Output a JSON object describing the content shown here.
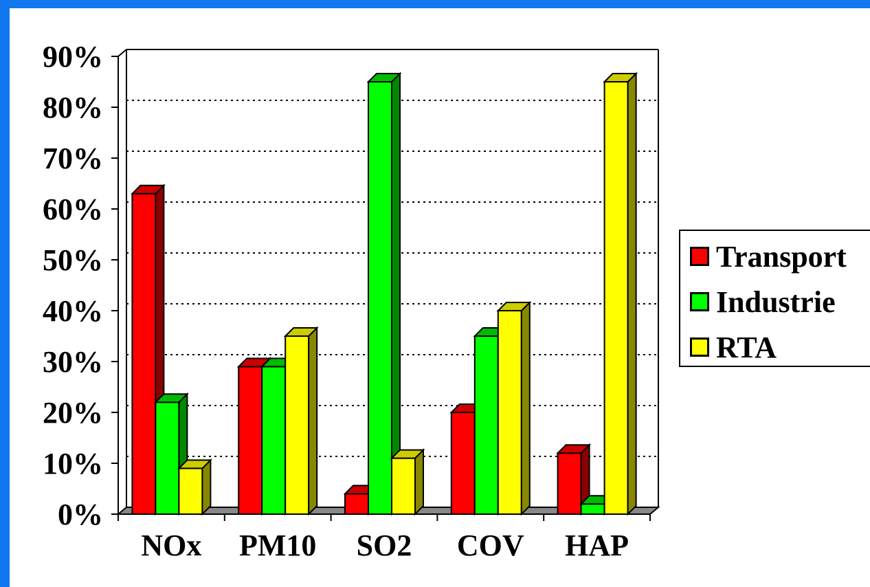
{
  "chart_data": {
    "type": "bar",
    "categories": [
      "NOx",
      "PM10",
      "SO2",
      "COV",
      "HAP"
    ],
    "series": [
      {
        "name": "Transport",
        "color": "#ff0000",
        "values": [
          63,
          29,
          4,
          20,
          12
        ]
      },
      {
        "name": "Industrie",
        "color": "#00ff00",
        "values": [
          22,
          29,
          85,
          35,
          2
        ]
      },
      {
        "name": "RTA",
        "color": "#ffff00",
        "values": [
          9,
          35,
          11,
          40,
          85
        ]
      }
    ],
    "yticks": [
      "0%",
      "10%",
      "20%",
      "30%",
      "40%",
      "50%",
      "60%",
      "70%",
      "80%",
      "90%"
    ],
    "ylim": [
      0,
      90
    ],
    "ylabel": "",
    "xlabel": "",
    "title": "",
    "grid": "horizontal dotted",
    "legend_position": "right",
    "style": "3d-columns",
    "side_colors": [
      "#8b0000",
      "#008800",
      "#888800"
    ],
    "top_colors": [
      "#cc0000",
      "#00bb00",
      "#cccc00"
    ]
  },
  "legend": {
    "items": [
      {
        "label": "Transport"
      },
      {
        "label": "Industrie"
      },
      {
        "label": "RTA"
      }
    ]
  }
}
